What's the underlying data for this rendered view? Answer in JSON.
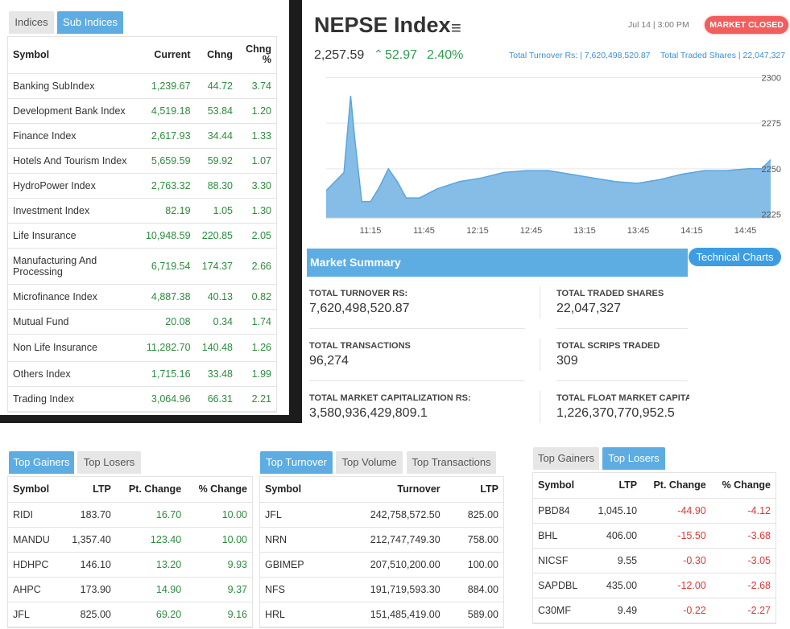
{
  "subindices": {
    "tabs": [
      "Indices",
      "Sub Indices"
    ],
    "headers": [
      "Symbol",
      "Current",
      "Chng",
      "Chng %"
    ],
    "rows": [
      [
        "Banking SubIndex",
        "1,239.67",
        "44.72",
        "3.74"
      ],
      [
        "Development Bank Index",
        "4,519.18",
        "53.84",
        "1.20"
      ],
      [
        "Finance Index",
        "2,617.93",
        "34.44",
        "1.33"
      ],
      [
        "Hotels And Tourism Index",
        "5,659.59",
        "59.92",
        "1.07"
      ],
      [
        "HydroPower Index",
        "2,763.32",
        "88.30",
        "3.30"
      ],
      [
        "Investment Index",
        "82.19",
        "1.05",
        "1.30"
      ],
      [
        "Life Insurance",
        "10,948.59",
        "220.85",
        "2.05"
      ],
      [
        "Manufacturing And Processing",
        "6,719.54",
        "174.37",
        "2.66"
      ],
      [
        "Microfinance Index",
        "4,887.38",
        "40.13",
        "0.82"
      ],
      [
        "Mutual Fund",
        "20.08",
        "0.34",
        "1.74"
      ],
      [
        "Non Life Insurance",
        "11,282.70",
        "140.48",
        "1.26"
      ],
      [
        "Others Index",
        "1,715.16",
        "33.48",
        "1.99"
      ],
      [
        "Trading Index",
        "3,064.96",
        "66.31",
        "2.21"
      ]
    ]
  },
  "nepse": {
    "title": "NEPSE Index",
    "datetime": "Jul 14 | 3:00 PM",
    "status": "MARKET CLOSED",
    "value": "2,257.59",
    "change": "52.97",
    "percent": "2.40%",
    "turnover_text": "Total Turnover Rs: | 7,620,498,520.87",
    "shares_text": "Total Traded Shares | 22,047,327"
  },
  "chart_data": {
    "type": "area",
    "x_ticks": [
      "11:15",
      "11:45",
      "12:15",
      "12:45",
      "13:15",
      "13:45",
      "14:15",
      "14:45"
    ],
    "y_ticks": [
      "2300",
      "2275",
      "2250",
      "2225"
    ],
    "ylim": [
      2223,
      2302
    ],
    "xlim": [
      0,
      100
    ],
    "color": "#85bde6",
    "line_color": "#5aa5dd",
    "points": [
      [
        0,
        2238
      ],
      [
        4,
        2248
      ],
      [
        5.5,
        2290
      ],
      [
        6.5,
        2265
      ],
      [
        8,
        2232
      ],
      [
        10,
        2232
      ],
      [
        12,
        2240
      ],
      [
        14,
        2250
      ],
      [
        16,
        2243
      ],
      [
        18,
        2234
      ],
      [
        21,
        2234
      ],
      [
        25,
        2239
      ],
      [
        30,
        2243
      ],
      [
        35,
        2245
      ],
      [
        40,
        2248
      ],
      [
        45,
        2249
      ],
      [
        50,
        2249
      ],
      [
        55,
        2247
      ],
      [
        60,
        2245
      ],
      [
        65,
        2243
      ],
      [
        70,
        2242
      ],
      [
        75,
        2244
      ],
      [
        80,
        2247
      ],
      [
        85,
        2249
      ],
      [
        90,
        2249
      ],
      [
        95,
        2250
      ],
      [
        98,
        2250
      ],
      [
        100,
        2255
      ]
    ]
  },
  "summary": {
    "title": "Market Summary",
    "button": "Technical Charts",
    "items": [
      {
        "label": "TOTAL TURNOVER RS:",
        "value": "7,620,498,520.87"
      },
      {
        "label": "TOTAL TRADED SHARES",
        "value": "22,047,327"
      },
      {
        "label": "TOTAL TRANSACTIONS",
        "value": "96,274"
      },
      {
        "label": "TOTAL SCRIPS TRADED",
        "value": "309"
      },
      {
        "label": "TOTAL MARKET CAPITALIZATION RS:",
        "value": "3,580,936,429,809.1"
      },
      {
        "label": "TOTAL FLOAT MARKET CAPITALI:",
        "value": "1,226,370,770,952.5"
      }
    ]
  },
  "gainers": {
    "tabs": [
      "Top Gainers",
      "Top Losers"
    ],
    "headers": [
      "Symbol",
      "LTP",
      "Pt. Change",
      "% Change"
    ],
    "rows": [
      [
        "RIDI",
        "183.70",
        "16.70",
        "10.00"
      ],
      [
        "MANDU",
        "1,357.40",
        "123.40",
        "10.00"
      ],
      [
        "HDHPC",
        "146.10",
        "13.20",
        "9.93"
      ],
      [
        "AHPC",
        "173.90",
        "14.90",
        "9.37"
      ],
      [
        "JFL",
        "825.00",
        "69.20",
        "9.16"
      ]
    ]
  },
  "turnover": {
    "tabs": [
      "Top Turnover",
      "Top Volume",
      "Top Transactions"
    ],
    "headers": [
      "Symbol",
      "Turnover",
      "LTP"
    ],
    "rows": [
      [
        "JFL",
        "242,758,572.50",
        "825.00"
      ],
      [
        "NRN",
        "212,747,749.30",
        "758.00"
      ],
      [
        "GBIMEP",
        "207,510,200.00",
        "100.00"
      ],
      [
        "NFS",
        "191,719,593.30",
        "884.00"
      ],
      [
        "HRL",
        "151,485,419.00",
        "589.00"
      ]
    ]
  },
  "losers": {
    "tabs": [
      "Top Gainers",
      "Top Losers"
    ],
    "headers": [
      "Symbol",
      "LTP",
      "Pt. Change",
      "% Change"
    ],
    "rows": [
      [
        "PBD84",
        "1,045.10",
        "-44.90",
        "-4.12"
      ],
      [
        "BHL",
        "406.00",
        "-15.50",
        "-3.68"
      ],
      [
        "NICSF",
        "9.55",
        "-0.30",
        "-3.05"
      ],
      [
        "SAPDBL",
        "435.00",
        "-12.00",
        "-2.68"
      ],
      [
        "C30MF",
        "9.49",
        "-0.22",
        "-2.27"
      ]
    ]
  }
}
